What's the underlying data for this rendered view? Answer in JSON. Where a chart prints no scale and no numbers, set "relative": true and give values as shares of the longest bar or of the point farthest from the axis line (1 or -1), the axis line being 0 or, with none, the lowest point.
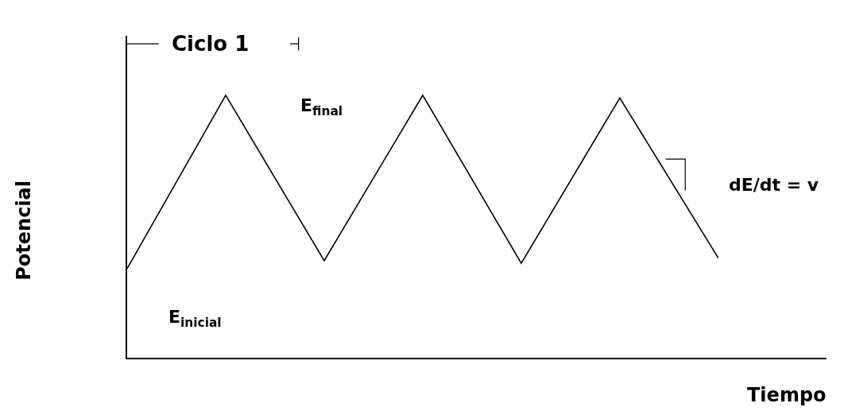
{
  "chart_data": {
    "type": "line",
    "relative": true,
    "xlabel": "Tiempo",
    "ylabel": "Potencial",
    "categories": [
      null,
      null,
      null,
      null,
      null,
      null,
      null
    ],
    "series": [
      {
        "color": "#000000",
        "values": [
          0.34,
          1,
          0.37,
          1,
          0.36,
          0.99,
          0.38
        ]
      }
    ],
    "annotations": [
      "Ciclo 1",
      "E$_{final}$",
      "E$_{inicial}$",
      "dE/dt = v"
    ],
    "marker": "none",
    "line_style": "solid",
    "legend": false
  }
}
